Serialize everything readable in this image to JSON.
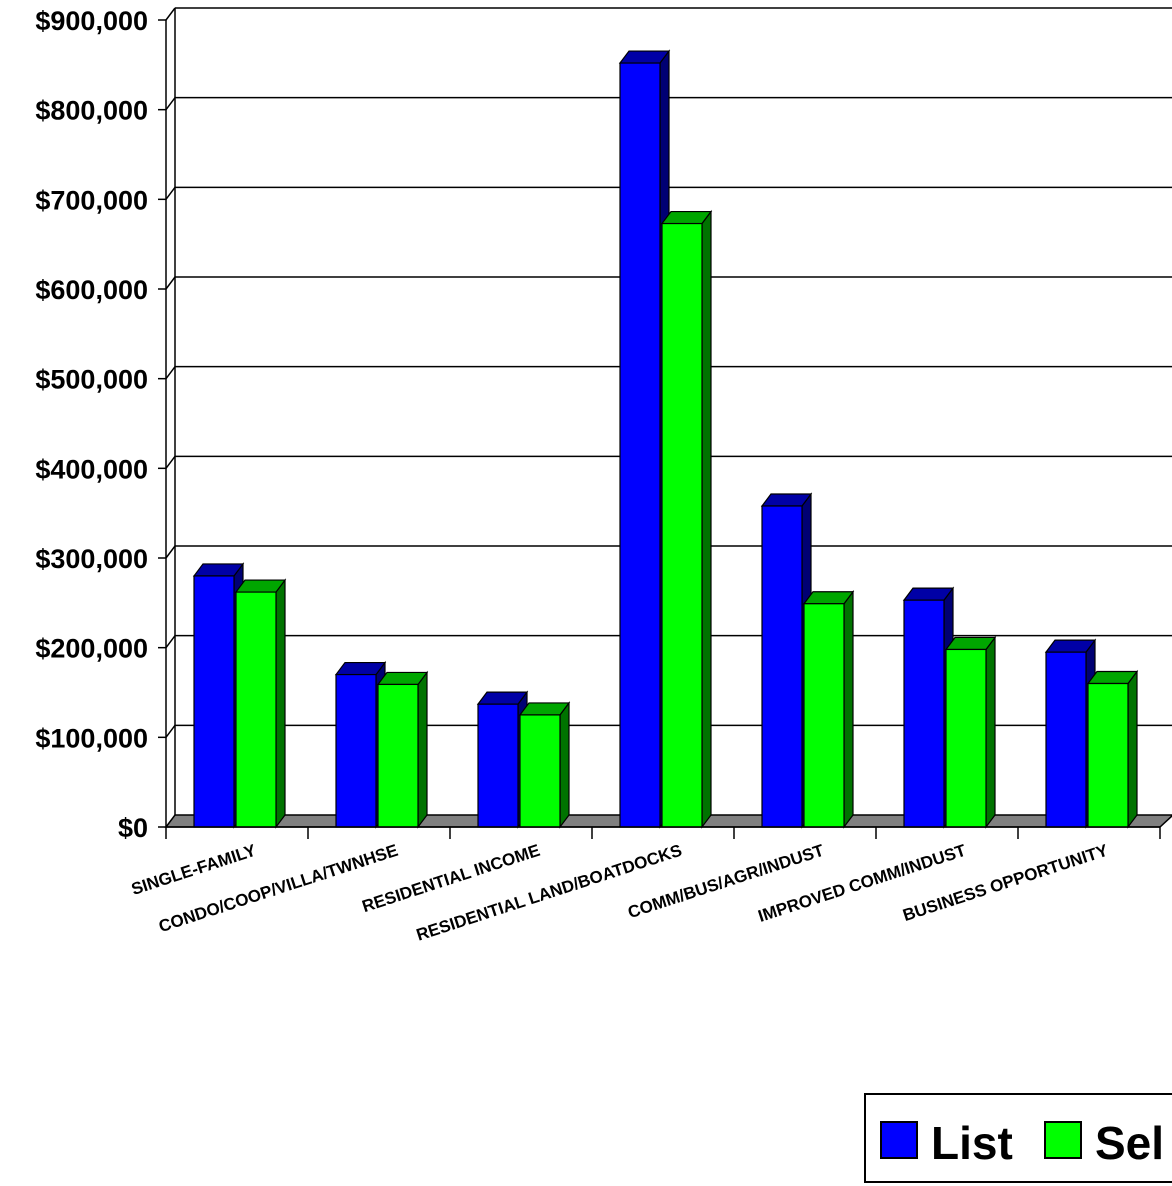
{
  "chart_data": {
    "type": "bar",
    "categories": [
      "SINGLE-FAMILY",
      "CONDO/COOP/VILLA/TWNHSE",
      "RESIDENTIAL INCOME",
      "RESIDENTIAL LAND/BOATDOCKS",
      "COMM/BUS/AGR/INDUST",
      "IMPROVED COMM/INDUST",
      "BUSINESS OPPORTUNITY"
    ],
    "series": [
      {
        "name": "List",
        "color": "#0000ff",
        "values": [
          280000,
          170000,
          137000,
          852000,
          358000,
          253000,
          195000
        ]
      },
      {
        "name": "Sel",
        "color": "#00ff00",
        "values": [
          262000,
          159000,
          125000,
          673000,
          249000,
          198000,
          160000
        ]
      }
    ],
    "ylim": [
      0,
      900000
    ],
    "yticks": [
      "$0",
      "$100,000",
      "$200,000",
      "$300,000",
      "$400,000",
      "$500,000",
      "$600,000",
      "$700,000",
      "$800,000",
      "$900,000"
    ],
    "grid": true,
    "legend_position": "bottom-right",
    "title": "",
    "xlabel": "",
    "ylabel": ""
  }
}
